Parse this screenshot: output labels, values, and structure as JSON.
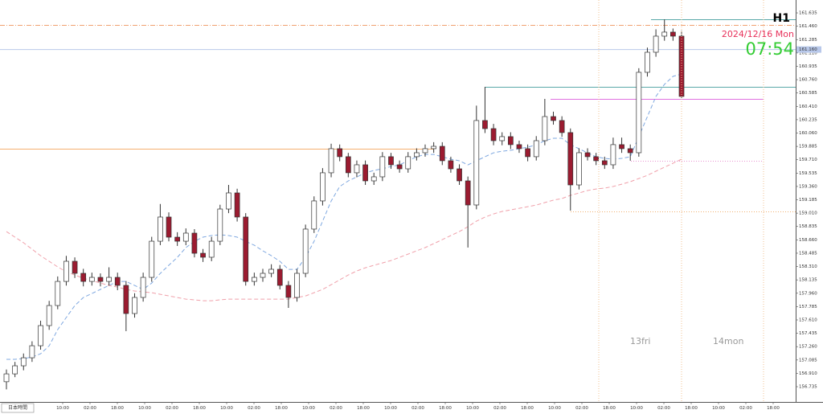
{
  "chart_data": {
    "type": "candlestick",
    "timeframe": "H1",
    "date": "2024/12/16 Mon",
    "clock": "07:54",
    "day_labels": [
      "13fri",
      "14mon"
    ],
    "timezone": "日本時間",
    "time_labels": [
      "10:00",
      "02:00",
      "18:00",
      "10:00",
      "02:00",
      "18:00",
      "10:00",
      "02:00",
      "18:00",
      "10:00",
      "02:00",
      "18:00",
      "10:00",
      "02:00",
      "18:00",
      "10:00",
      "02:00",
      "18:00",
      "10:00",
      "02:00",
      "18:00",
      "10:00",
      "02:00",
      "18:00",
      "10:00",
      "02:00",
      "18:00"
    ],
    "up_color": "#ffffff",
    "down_color": "#9b1b30",
    "open": [
      156.8,
      156.903,
      157.009,
      157.114,
      157.272,
      157.536,
      157.799,
      158.115,
      158.379,
      158.221,
      158.115,
      158.168,
      158.115,
      158.168,
      158.063,
      157.694,
      157.905,
      158.168,
      158.642,
      158.959,
      158.695,
      158.642,
      158.748,
      158.484,
      158.432,
      158.642,
      159.064,
      159.275,
      158.959,
      158.115,
      158.168,
      158.221,
      158.274,
      158.063,
      157.905,
      158.221,
      158.801,
      159.17,
      159.539,
      159.855,
      159.75,
      159.539,
      159.644,
      159.433,
      159.486,
      159.75,
      159.644,
      159.591,
      159.75,
      159.802,
      159.855,
      159.886,
      159.697,
      159.591,
      159.433,
      159.117,
      160.224,
      160.118,
      159.96,
      160.013,
      159.908,
      159.855,
      159.75,
      159.96,
      160.276,
      160.224,
      160.066,
      159.38,
      159.802,
      159.75,
      159.697,
      159.644,
      159.908,
      159.855,
      159.802,
      160.856,
      161.119,
      161.33,
      161.383,
      161.33
    ],
    "high": [
      156.96,
      157.06,
      157.17,
      157.33,
      157.6,
      157.86,
      158.18,
      158.45,
      158.43,
      158.28,
      158.23,
      158.22,
      158.3,
      158.23,
      158.12,
      157.96,
      158.23,
      158.7,
      159.13,
      159.02,
      158.76,
      158.81,
      158.8,
      158.54,
      158.7,
      159.12,
      159.38,
      159.33,
      159.01,
      158.23,
      158.28,
      158.34,
      158.33,
      158.12,
      158.28,
      158.86,
      159.23,
      159.6,
      159.92,
      159.91,
      159.8,
      159.7,
      159.7,
      159.54,
      159.81,
      159.8,
      159.7,
      159.81,
      159.86,
      159.91,
      159.94,
      159.94,
      159.75,
      159.65,
      159.49,
      160.42,
      160.666,
      160.18,
      160.07,
      160.07,
      159.96,
      159.91,
      160.02,
      160.508,
      160.34,
      160.28,
      160.12,
      159.86,
      159.86,
      159.8,
      159.75,
      160.0,
      160.0,
      159.91,
      160.91,
      161.18,
      161.42,
      161.551,
      161.43,
      161.4
    ],
    "low": [
      156.7,
      156.86,
      156.95,
      157.06,
      157.22,
      157.48,
      157.75,
      158.06,
      158.16,
      158.05,
      158.06,
      158.05,
      158.06,
      158.0,
      157.463,
      157.64,
      157.85,
      158.11,
      158.59,
      158.64,
      158.58,
      158.59,
      158.43,
      158.37,
      158.38,
      158.59,
      159.01,
      158.9,
      158.06,
      158.06,
      158.11,
      158.17,
      158.01,
      157.768,
      157.85,
      158.17,
      158.75,
      159.11,
      159.48,
      159.69,
      159.48,
      159.48,
      159.38,
      159.38,
      159.43,
      159.59,
      159.54,
      159.54,
      159.7,
      159.75,
      159.8,
      159.64,
      159.54,
      159.38,
      158.559,
      159.06,
      160.06,
      159.9,
      159.9,
      159.85,
      159.8,
      159.69,
      159.7,
      159.9,
      160.17,
      160.01,
      159.043,
      159.32,
      159.7,
      159.64,
      159.59,
      159.59,
      159.8,
      159.697,
      159.75,
      160.8,
      161.06,
      161.27,
      161.27,
      160.519
    ],
    "close": [
      156.903,
      157.009,
      157.114,
      157.272,
      157.536,
      157.799,
      158.115,
      158.379,
      158.221,
      158.115,
      158.168,
      158.115,
      158.168,
      158.063,
      157.694,
      157.905,
      158.168,
      158.642,
      158.959,
      158.695,
      158.642,
      158.748,
      158.484,
      158.432,
      158.642,
      159.064,
      159.275,
      158.959,
      158.115,
      158.168,
      158.221,
      158.274,
      158.063,
      157.905,
      158.221,
      158.801,
      159.17,
      159.539,
      159.855,
      159.75,
      159.539,
      159.644,
      159.433,
      159.486,
      159.75,
      159.644,
      159.591,
      159.75,
      159.802,
      159.855,
      159.886,
      159.697,
      159.591,
      159.433,
      159.117,
      160.224,
      160.118,
      159.96,
      160.013,
      159.908,
      159.855,
      159.75,
      159.96,
      160.276,
      160.224,
      160.066,
      159.38,
      159.802,
      159.75,
      159.697,
      159.644,
      159.908,
      159.855,
      159.802,
      160.856,
      161.119,
      161.33,
      161.383,
      161.33,
      160.54
    ],
    "series": [
      {
        "color": "#7fa8e0",
        "values": [
          157.093,
          157.093,
          157.103,
          157.124,
          157.166,
          157.272,
          157.483,
          157.641,
          157.799,
          157.904,
          157.957,
          158.01,
          158.062,
          158.115,
          158.115,
          158.062,
          158.01,
          158.094,
          158.22,
          158.326,
          158.431,
          158.558,
          158.642,
          158.695,
          158.716,
          158.726,
          158.716,
          158.695,
          158.642,
          158.589,
          158.516,
          158.452,
          158.378,
          158.273,
          158.273,
          158.431,
          158.642,
          158.905,
          159.169,
          159.359,
          159.432,
          159.485,
          159.538,
          159.57,
          159.591,
          159.622,
          159.643,
          159.696,
          159.749,
          159.78,
          159.78,
          159.749,
          159.717,
          159.696,
          159.643,
          159.696,
          159.749,
          159.801,
          159.822,
          159.833,
          159.854,
          159.875,
          159.907,
          159.959,
          159.991,
          159.991,
          159.907,
          159.854,
          159.801,
          159.749,
          159.728,
          159.717,
          159.728,
          159.749,
          160.012,
          160.276,
          160.539,
          160.697,
          160.803,
          160.834
        ]
      },
      {
        "color": "#f0a0aa",
        "values": [
          158.768,
          158.695,
          158.621,
          158.537,
          158.452,
          158.378,
          158.305,
          158.241,
          158.199,
          158.157,
          158.126,
          158.094,
          158.062,
          158.041,
          158.01,
          157.989,
          157.978,
          157.967,
          157.946,
          157.925,
          157.904,
          157.883,
          157.873,
          157.862,
          157.862,
          157.873,
          157.883,
          157.883,
          157.883,
          157.883,
          157.883,
          157.883,
          157.883,
          157.883,
          157.904,
          157.925,
          157.967,
          158.01,
          158.073,
          158.136,
          158.199,
          158.252,
          158.294,
          158.326,
          158.357,
          158.389,
          158.431,
          158.473,
          158.516,
          158.558,
          158.61,
          158.663,
          158.716,
          158.768,
          158.832,
          158.905,
          158.958,
          159.0,
          159.032,
          159.053,
          159.074,
          159.095,
          159.116,
          159.148,
          159.18,
          159.201,
          159.243,
          159.274,
          159.306,
          159.327,
          159.338,
          159.359,
          159.39,
          159.422,
          159.464,
          159.506,
          159.559,
          159.612,
          159.664,
          159.717
        ]
      }
    ],
    "levels": [
      {
        "value": 161.477,
        "color": "#f0a070",
        "style": "dash-dot"
      },
      {
        "value": 161.551,
        "color": "#5aa8a8",
        "style": "solid"
      },
      {
        "value": 160.666,
        "color": "#5aa8a8",
        "style": "solid"
      },
      {
        "value": 160.508,
        "color": "#e070e0",
        "style": "solid"
      },
      {
        "value": 159.855,
        "color": "#f5b070",
        "style": "solid"
      },
      {
        "value": 159.697,
        "color": "#e890d0",
        "style": "dotted"
      },
      {
        "value": 159.033,
        "color": "#f0b070",
        "style": "dotted"
      }
    ],
    "bid": {
      "value": 161.16,
      "label": "161.160",
      "color": "#b8c8ea"
    },
    "ylim": [
      156.535,
      161.804
    ],
    "yticks": [
      156.735,
      {
        "value": 156.91,
        "label": "156.910"
      },
      157.085,
      {
        "value": 157.26,
        "label": "157.260"
      },
      157.435,
      {
        "value": 157.61,
        "label": "157.610"
      },
      157.785,
      {
        "value": 157.96,
        "label": "157.960"
      },
      158.135,
      {
        "value": 158.31,
        "label": "158.310"
      },
      158.485,
      {
        "value": 158.66,
        "label": "158.660"
      },
      158.835,
      {
        "value": 159.01,
        "label": "159.010"
      },
      159.185,
      {
        "value": 159.36,
        "label": "159.360"
      },
      159.535,
      {
        "value": 159.71,
        "label": "159.710"
      },
      159.885,
      {
        "value": 160.06,
        "label": "160.060"
      },
      160.235,
      {
        "value": 160.41,
        "label": "160.410"
      },
      160.585,
      {
        "value": 160.76,
        "label": "160.760"
      },
      160.935,
      {
        "value": 161.11,
        "label": "161.110"
      },
      161.285,
      {
        "value": 161.46,
        "label": "161.460"
      },
      161.635
    ]
  }
}
